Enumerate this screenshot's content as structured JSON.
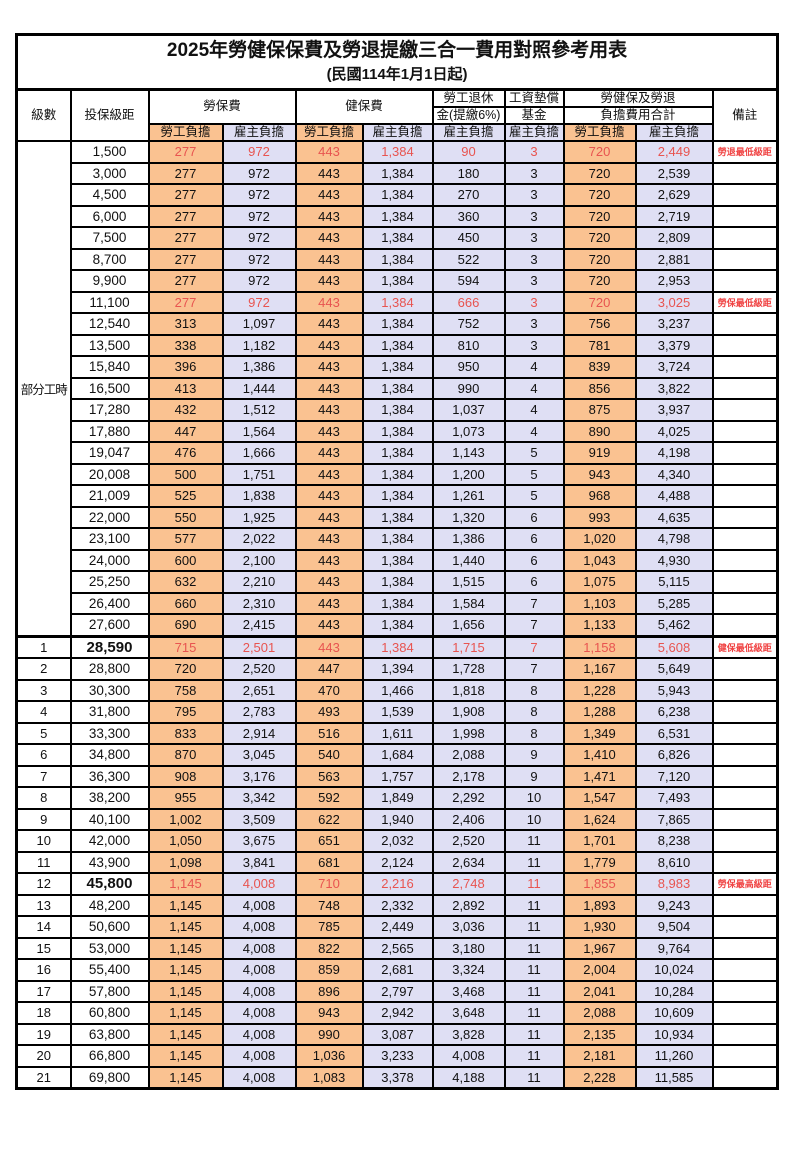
{
  "title": "2025年勞健保保費及勞退提繳三合一費用對照參考用表",
  "subtitle": "(民國114年1月1日起)",
  "header": {
    "level": "級數",
    "bracket": "投保級距",
    "labor_ins": "勞保費",
    "health_ins": "健保費",
    "pension_line1": "勞工退休",
    "pension_line2": "金(提繳6%)",
    "wage_fund_line1": "工資墊償",
    "wage_fund_line2": "基金",
    "total_line1": "勞健保及勞退",
    "total_line2": "負擔費用合計",
    "remark": "備註",
    "employee": "勞工負擔",
    "employer": "雇主負擔"
  },
  "colors": {
    "employee_bg": "#FAC291",
    "employer_bg": "#DFDFF4",
    "highlight_value_red": "#E85450",
    "remark_red": "#F04444"
  },
  "table": {
    "part_time_label": "部分工時",
    "part_time_rowspan": 23,
    "rows": [
      {
        "level": "",
        "bracket": "1,500",
        "li_emp": "277",
        "li_er": "972",
        "hi_emp": "443",
        "hi_er": "1,384",
        "pen": "90",
        "fund": "3",
        "te": "720",
        "ter": "2,449",
        "remark": "勞退最低級距",
        "red": true
      },
      {
        "level": "",
        "bracket": "3,000",
        "li_emp": "277",
        "li_er": "972",
        "hi_emp": "443",
        "hi_er": "1,384",
        "pen": "180",
        "fund": "3",
        "te": "720",
        "ter": "2,539",
        "remark": ""
      },
      {
        "level": "",
        "bracket": "4,500",
        "li_emp": "277",
        "li_er": "972",
        "hi_emp": "443",
        "hi_er": "1,384",
        "pen": "270",
        "fund": "3",
        "te": "720",
        "ter": "2,629",
        "remark": ""
      },
      {
        "level": "",
        "bracket": "6,000",
        "li_emp": "277",
        "li_er": "972",
        "hi_emp": "443",
        "hi_er": "1,384",
        "pen": "360",
        "fund": "3",
        "te": "720",
        "ter": "2,719",
        "remark": ""
      },
      {
        "level": "",
        "bracket": "7,500",
        "li_emp": "277",
        "li_er": "972",
        "hi_emp": "443",
        "hi_er": "1,384",
        "pen": "450",
        "fund": "3",
        "te": "720",
        "ter": "2,809",
        "remark": ""
      },
      {
        "level": "",
        "bracket": "8,700",
        "li_emp": "277",
        "li_er": "972",
        "hi_emp": "443",
        "hi_er": "1,384",
        "pen": "522",
        "fund": "3",
        "te": "720",
        "ter": "2,881",
        "remark": ""
      },
      {
        "level": "",
        "bracket": "9,900",
        "li_emp": "277",
        "li_er": "972",
        "hi_emp": "443",
        "hi_er": "1,384",
        "pen": "594",
        "fund": "3",
        "te": "720",
        "ter": "2,953",
        "remark": ""
      },
      {
        "level": "",
        "bracket": "11,100",
        "li_emp": "277",
        "li_er": "972",
        "hi_emp": "443",
        "hi_er": "1,384",
        "pen": "666",
        "fund": "3",
        "te": "720",
        "ter": "3,025",
        "remark": "勞保最低級距",
        "red": true
      },
      {
        "level": "",
        "bracket": "12,540",
        "li_emp": "313",
        "li_er": "1,097",
        "hi_emp": "443",
        "hi_er": "1,384",
        "pen": "752",
        "fund": "3",
        "te": "756",
        "ter": "3,237",
        "remark": ""
      },
      {
        "level": "",
        "bracket": "13,500",
        "li_emp": "338",
        "li_er": "1,182",
        "hi_emp": "443",
        "hi_er": "1,384",
        "pen": "810",
        "fund": "3",
        "te": "781",
        "ter": "3,379",
        "remark": ""
      },
      {
        "level": "",
        "bracket": "15,840",
        "li_emp": "396",
        "li_er": "1,386",
        "hi_emp": "443",
        "hi_er": "1,384",
        "pen": "950",
        "fund": "4",
        "te": "839",
        "ter": "3,724",
        "remark": ""
      },
      {
        "level": "",
        "bracket": "16,500",
        "li_emp": "413",
        "li_er": "1,444",
        "hi_emp": "443",
        "hi_er": "1,384",
        "pen": "990",
        "fund": "4",
        "te": "856",
        "ter": "3,822",
        "remark": ""
      },
      {
        "level": "",
        "bracket": "17,280",
        "li_emp": "432",
        "li_er": "1,512",
        "hi_emp": "443",
        "hi_er": "1,384",
        "pen": "1,037",
        "fund": "4",
        "te": "875",
        "ter": "3,937",
        "remark": ""
      },
      {
        "level": "",
        "bracket": "17,880",
        "li_emp": "447",
        "li_er": "1,564",
        "hi_emp": "443",
        "hi_er": "1,384",
        "pen": "1,073",
        "fund": "4",
        "te": "890",
        "ter": "4,025",
        "remark": ""
      },
      {
        "level": "",
        "bracket": "19,047",
        "li_emp": "476",
        "li_er": "1,666",
        "hi_emp": "443",
        "hi_er": "1,384",
        "pen": "1,143",
        "fund": "5",
        "te": "919",
        "ter": "4,198",
        "remark": ""
      },
      {
        "level": "",
        "bracket": "20,008",
        "li_emp": "500",
        "li_er": "1,751",
        "hi_emp": "443",
        "hi_er": "1,384",
        "pen": "1,200",
        "fund": "5",
        "te": "943",
        "ter": "4,340",
        "remark": ""
      },
      {
        "level": "",
        "bracket": "21,009",
        "li_emp": "525",
        "li_er": "1,838",
        "hi_emp": "443",
        "hi_er": "1,384",
        "pen": "1,261",
        "fund": "5",
        "te": "968",
        "ter": "4,488",
        "remark": ""
      },
      {
        "level": "",
        "bracket": "22,000",
        "li_emp": "550",
        "li_er": "1,925",
        "hi_emp": "443",
        "hi_er": "1,384",
        "pen": "1,320",
        "fund": "6",
        "te": "993",
        "ter": "4,635",
        "remark": ""
      },
      {
        "level": "",
        "bracket": "23,100",
        "li_emp": "577",
        "li_er": "2,022",
        "hi_emp": "443",
        "hi_er": "1,384",
        "pen": "1,386",
        "fund": "6",
        "te": "1,020",
        "ter": "4,798",
        "remark": ""
      },
      {
        "level": "",
        "bracket": "24,000",
        "li_emp": "600",
        "li_er": "2,100",
        "hi_emp": "443",
        "hi_er": "1,384",
        "pen": "1,440",
        "fund": "6",
        "te": "1,043",
        "ter": "4,930",
        "remark": ""
      },
      {
        "level": "",
        "bracket": "25,250",
        "li_emp": "632",
        "li_er": "2,210",
        "hi_emp": "443",
        "hi_er": "1,384",
        "pen": "1,515",
        "fund": "6",
        "te": "1,075",
        "ter": "5,115",
        "remark": ""
      },
      {
        "level": "",
        "bracket": "26,400",
        "li_emp": "660",
        "li_er": "2,310",
        "hi_emp": "443",
        "hi_er": "1,384",
        "pen": "1,584",
        "fund": "7",
        "te": "1,103",
        "ter": "5,285",
        "remark": ""
      },
      {
        "level": "",
        "bracket": "27,600",
        "li_emp": "690",
        "li_er": "2,415",
        "hi_emp": "443",
        "hi_er": "1,384",
        "pen": "1,656",
        "fund": "7",
        "te": "1,133",
        "ter": "5,462",
        "remark": ""
      },
      {
        "level": "1",
        "bracket": "28,590",
        "li_emp": "715",
        "li_er": "2,501",
        "hi_emp": "443",
        "hi_er": "1,384",
        "pen": "1,715",
        "fund": "7",
        "te": "1,158",
        "ter": "5,608",
        "remark": "健保最低級距",
        "red": true,
        "bold": true,
        "sep": true
      },
      {
        "level": "2",
        "bracket": "28,800",
        "li_emp": "720",
        "li_er": "2,520",
        "hi_emp": "447",
        "hi_er": "1,394",
        "pen": "1,728",
        "fund": "7",
        "te": "1,167",
        "ter": "5,649",
        "remark": ""
      },
      {
        "level": "3",
        "bracket": "30,300",
        "li_emp": "758",
        "li_er": "2,651",
        "hi_emp": "470",
        "hi_er": "1,466",
        "pen": "1,818",
        "fund": "8",
        "te": "1,228",
        "ter": "5,943",
        "remark": ""
      },
      {
        "level": "4",
        "bracket": "31,800",
        "li_emp": "795",
        "li_er": "2,783",
        "hi_emp": "493",
        "hi_er": "1,539",
        "pen": "1,908",
        "fund": "8",
        "te": "1,288",
        "ter": "6,238",
        "remark": ""
      },
      {
        "level": "5",
        "bracket": "33,300",
        "li_emp": "833",
        "li_er": "2,914",
        "hi_emp": "516",
        "hi_er": "1,611",
        "pen": "1,998",
        "fund": "8",
        "te": "1,349",
        "ter": "6,531",
        "remark": ""
      },
      {
        "level": "6",
        "bracket": "34,800",
        "li_emp": "870",
        "li_er": "3,045",
        "hi_emp": "540",
        "hi_er": "1,684",
        "pen": "2,088",
        "fund": "9",
        "te": "1,410",
        "ter": "6,826",
        "remark": ""
      },
      {
        "level": "7",
        "bracket": "36,300",
        "li_emp": "908",
        "li_er": "3,176",
        "hi_emp": "563",
        "hi_er": "1,757",
        "pen": "2,178",
        "fund": "9",
        "te": "1,471",
        "ter": "7,120",
        "remark": ""
      },
      {
        "level": "8",
        "bracket": "38,200",
        "li_emp": "955",
        "li_er": "3,342",
        "hi_emp": "592",
        "hi_er": "1,849",
        "pen": "2,292",
        "fund": "10",
        "te": "1,547",
        "ter": "7,493",
        "remark": ""
      },
      {
        "level": "9",
        "bracket": "40,100",
        "li_emp": "1,002",
        "li_er": "3,509",
        "hi_emp": "622",
        "hi_er": "1,940",
        "pen": "2,406",
        "fund": "10",
        "te": "1,624",
        "ter": "7,865",
        "remark": ""
      },
      {
        "level": "10",
        "bracket": "42,000",
        "li_emp": "1,050",
        "li_er": "3,675",
        "hi_emp": "651",
        "hi_er": "2,032",
        "pen": "2,520",
        "fund": "11",
        "te": "1,701",
        "ter": "8,238",
        "remark": ""
      },
      {
        "level": "11",
        "bracket": "43,900",
        "li_emp": "1,098",
        "li_er": "3,841",
        "hi_emp": "681",
        "hi_er": "2,124",
        "pen": "2,634",
        "fund": "11",
        "te": "1,779",
        "ter": "8,610",
        "remark": ""
      },
      {
        "level": "12",
        "bracket": "45,800",
        "li_emp": "1,145",
        "li_er": "4,008",
        "hi_emp": "710",
        "hi_er": "2,216",
        "pen": "2,748",
        "fund": "11",
        "te": "1,855",
        "ter": "8,983",
        "remark": "勞保最高級距",
        "red": true,
        "bold": true
      },
      {
        "level": "13",
        "bracket": "48,200",
        "li_emp": "1,145",
        "li_er": "4,008",
        "hi_emp": "748",
        "hi_er": "2,332",
        "pen": "2,892",
        "fund": "11",
        "te": "1,893",
        "ter": "9,243",
        "remark": ""
      },
      {
        "level": "14",
        "bracket": "50,600",
        "li_emp": "1,145",
        "li_er": "4,008",
        "hi_emp": "785",
        "hi_er": "2,449",
        "pen": "3,036",
        "fund": "11",
        "te": "1,930",
        "ter": "9,504",
        "remark": ""
      },
      {
        "level": "15",
        "bracket": "53,000",
        "li_emp": "1,145",
        "li_er": "4,008",
        "hi_emp": "822",
        "hi_er": "2,565",
        "pen": "3,180",
        "fund": "11",
        "te": "1,967",
        "ter": "9,764",
        "remark": ""
      },
      {
        "level": "16",
        "bracket": "55,400",
        "li_emp": "1,145",
        "li_er": "4,008",
        "hi_emp": "859",
        "hi_er": "2,681",
        "pen": "3,324",
        "fund": "11",
        "te": "2,004",
        "ter": "10,024",
        "remark": ""
      },
      {
        "level": "17",
        "bracket": "57,800",
        "li_emp": "1,145",
        "li_er": "4,008",
        "hi_emp": "896",
        "hi_er": "2,797",
        "pen": "3,468",
        "fund": "11",
        "te": "2,041",
        "ter": "10,284",
        "remark": ""
      },
      {
        "level": "18",
        "bracket": "60,800",
        "li_emp": "1,145",
        "li_er": "4,008",
        "hi_emp": "943",
        "hi_er": "2,942",
        "pen": "3,648",
        "fund": "11",
        "te": "2,088",
        "ter": "10,609",
        "remark": ""
      },
      {
        "level": "19",
        "bracket": "63,800",
        "li_emp": "1,145",
        "li_er": "4,008",
        "hi_emp": "990",
        "hi_er": "3,087",
        "pen": "3,828",
        "fund": "11",
        "te": "2,135",
        "ter": "10,934",
        "remark": ""
      },
      {
        "level": "20",
        "bracket": "66,800",
        "li_emp": "1,145",
        "li_er": "4,008",
        "hi_emp": "1,036",
        "hi_er": "3,233",
        "pen": "4,008",
        "fund": "11",
        "te": "2,181",
        "ter": "11,260",
        "remark": ""
      },
      {
        "level": "21",
        "bracket": "69,800",
        "li_emp": "1,145",
        "li_er": "4,008",
        "hi_emp": "1,083",
        "hi_er": "3,378",
        "pen": "4,188",
        "fund": "11",
        "te": "2,228",
        "ter": "11,585",
        "remark": ""
      }
    ]
  }
}
